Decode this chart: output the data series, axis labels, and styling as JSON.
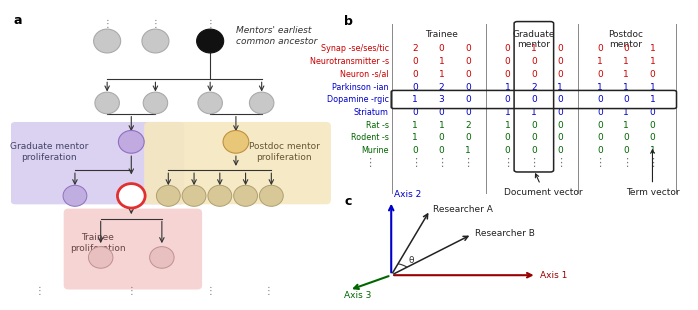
{
  "panel_a_label": "a",
  "panel_b_label": "b",
  "panel_c_label": "c",
  "fig_bg": "#ffffff",
  "circle_gray": "#c8c8c8",
  "circle_black": "#1a1a1a",
  "circle_purple": "#c0aae0",
  "circle_orange": "#e8c878",
  "circle_red_outline": "#e03030",
  "box_purple_bg": "#d8ccf0",
  "box_orange_bg": "#f5e8c0",
  "box_pink_bg": "#f5d0d0",
  "graduate_label": "Graduate mentor\nproliferation",
  "postdoc_label": "Postdoc mentor\nproliferation",
  "trainee_label": "Trainee\nproliferation",
  "ancestor_label": "Mentors' earliest\ncommon ancestor",
  "row_labels": [
    "Synap -se/ses/tic",
    "Neurotransmitter -s",
    "Neuron -s/al",
    "Parkinson -ian",
    "Dopamine -rgic",
    "Striatum",
    "Rat -s",
    "Rodent -s",
    "Murine"
  ],
  "row_colors": [
    "#cc0000",
    "#cc0000",
    "#cc0000",
    "#0000cc",
    "#0000cc",
    "#0000cc",
    "#006600",
    "#006600",
    "#006600"
  ],
  "col_headers": [
    "Trainee",
    "Graduate\nmentor",
    "Postdoc\nmentor"
  ],
  "matrix": [
    [
      2,
      0,
      0,
      0,
      1,
      0,
      0,
      0,
      1
    ],
    [
      0,
      1,
      0,
      0,
      0,
      0,
      1,
      1,
      1
    ],
    [
      0,
      1,
      0,
      0,
      0,
      0,
      0,
      1,
      0
    ],
    [
      0,
      2,
      0,
      1,
      2,
      1,
      1,
      1,
      1
    ],
    [
      1,
      3,
      0,
      0,
      0,
      0,
      0,
      0,
      1
    ],
    [
      0,
      0,
      0,
      1,
      1,
      0,
      0,
      1,
      0
    ],
    [
      1,
      1,
      2,
      1,
      0,
      0,
      0,
      1,
      0
    ],
    [
      1,
      0,
      0,
      0,
      0,
      0,
      0,
      0,
      0
    ],
    [
      0,
      0,
      1,
      0,
      0,
      0,
      0,
      0,
      1
    ]
  ],
  "axis1_label": "Axis 1",
  "axis2_label": "Axis 2",
  "axis3_label": "Axis 3",
  "researcherA_label": "Researcher A",
  "researcherB_label": "Researcher B",
  "theta_label": "θ",
  "document_vector_label": "Document vector",
  "term_vector_label": "Term vector"
}
